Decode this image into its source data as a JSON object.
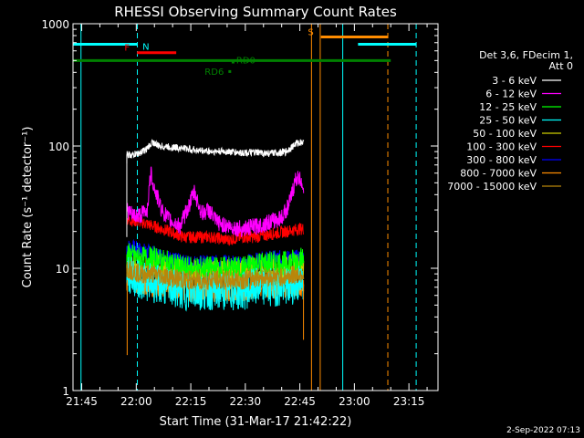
{
  "chart_data": {
    "type": "line",
    "title": "RHESSI Observing Summary Count Rates",
    "xlabel": "Start Time (31-Mar-17 21:42:22)",
    "ylabel": "Count Rate (s⁻¹ detector⁻¹)",
    "yscale": "log",
    "ylim": [
      1,
      1000
    ],
    "xlim_minutes": [
      -2.4,
      98.0
    ],
    "x_unit": "minutes after 21:45 UT",
    "x_ticks": [
      {
        "t": 0,
        "label": "21:45"
      },
      {
        "t": 15,
        "label": "22:00"
      },
      {
        "t": 30,
        "label": "22:15"
      },
      {
        "t": 45,
        "label": "22:30"
      },
      {
        "t": 60,
        "label": "22:45"
      },
      {
        "t": 75,
        "label": "23:00"
      },
      {
        "t": 90,
        "label": "23:15"
      }
    ],
    "y_ticks": [
      {
        "v": 1,
        "label": "1"
      },
      {
        "v": 10,
        "label": "10"
      },
      {
        "v": 100,
        "label": "100"
      },
      {
        "v": 1000,
        "label": "1000"
      }
    ],
    "legend": {
      "position": "right",
      "header": [
        "Det 3,6, FDecim 1,",
        "Att 0"
      ],
      "entries": [
        {
          "label": "3 - 6 keV",
          "color": "#ffffff"
        },
        {
          "label": "6 - 12 keV",
          "color": "#ff00ff"
        },
        {
          "label": "12 - 25 keV",
          "color": "#00ff00"
        },
        {
          "label": "25 - 50 keV",
          "color": "#00ffff"
        },
        {
          "label": "50 - 100 keV",
          "color": "#cccc00"
        },
        {
          "label": "100 - 300 keV",
          "color": "#ff0000"
        },
        {
          "label": "300 - 800 keV",
          "color": "#0000ff"
        },
        {
          "label": "800 - 7000 keV",
          "color": "#ff8c00"
        },
        {
          "label": "7000 - 15000 keV",
          "color": "#b8860b"
        }
      ]
    },
    "data_interval_minutes": [
      12.4,
      61.1
    ],
    "series": [
      {
        "name": "3 - 6 keV",
        "color": "#ffffff",
        "x": [
          12.4,
          14,
          16,
          18,
          19.5,
          21,
          24,
          28,
          32,
          36,
          40,
          44,
          48,
          52,
          56,
          59,
          60.5,
          61.1
        ],
        "y": [
          85,
          84,
          88,
          95,
          108,
          100,
          98,
          96,
          92,
          90,
          90,
          88,
          88,
          87,
          89,
          105,
          108,
          105
        ]
      },
      {
        "name": "6 - 12 keV",
        "color": "#ff00ff",
        "x": [
          12.4,
          14,
          16,
          18,
          19,
          20,
          22,
          24,
          27,
          29,
          31,
          33,
          35,
          37,
          40,
          44,
          48,
          52,
          55,
          57,
          59,
          60.5,
          61.1
        ],
        "y": [
          30,
          27,
          27,
          30,
          60,
          45,
          30,
          25,
          22,
          30,
          42,
          28,
          30,
          24,
          22,
          21,
          22,
          24,
          26,
          33,
          55,
          52,
          45
        ]
      },
      {
        "name": "12 - 25 keV",
        "color": "#00ff00",
        "x": [
          12.4,
          16,
          20,
          24,
          28,
          32,
          36,
          40,
          44,
          48,
          52,
          56,
          60,
          61.1
        ],
        "y": [
          13,
          12,
          12,
          11,
          10,
          10,
          10,
          10,
          10,
          11,
          11,
          11,
          12,
          12
        ]
      },
      {
        "name": "25 - 50 keV",
        "color": "#00ffff",
        "x": [
          12.4,
          16,
          20,
          24,
          28,
          32,
          36,
          40,
          44,
          48,
          52,
          56,
          60,
          61.1
        ],
        "y": [
          9,
          8,
          7.5,
          7,
          6.5,
          6.5,
          6.5,
          6.5,
          6.5,
          7,
          7,
          7,
          7.5,
          7.5
        ]
      },
      {
        "name": "50 - 100 keV",
        "color": "#cccc00",
        "x": [
          12.4,
          16,
          20,
          24,
          28,
          32,
          36,
          40,
          44,
          48,
          52,
          56,
          60,
          61.1
        ],
        "y": [
          11,
          10,
          10,
          9.5,
          9,
          9,
          9,
          9,
          9,
          9.5,
          9.5,
          9.5,
          10,
          10
        ]
      },
      {
        "name": "100 - 300 keV",
        "color": "#ff0000",
        "x": [
          12.4,
          16,
          20,
          24,
          28,
          32,
          36,
          40,
          44,
          48,
          52,
          56,
          60,
          61.1
        ],
        "y": [
          25,
          24,
          22,
          20,
          18,
          18,
          18,
          17,
          18,
          18,
          19,
          20,
          21,
          21
        ]
      },
      {
        "name": "300 - 800 keV",
        "color": "#0000ff",
        "x": [
          12.4,
          16,
          20,
          24,
          28,
          32,
          36,
          40,
          44,
          48,
          52,
          56,
          60,
          61.1
        ],
        "y": [
          15,
          14,
          13,
          12,
          11,
          11,
          11,
          11,
          11,
          11.5,
          12,
          12,
          12,
          12
        ]
      },
      {
        "name": "800 - 7000 keV",
        "color": "#ff8c00",
        "x": [
          12.4,
          16,
          20,
          24,
          28,
          32,
          36,
          40,
          44,
          48,
          52,
          56,
          60,
          61.1
        ],
        "y": [
          8,
          7.5,
          7,
          7,
          6.5,
          6.5,
          6.5,
          6.5,
          6.5,
          7,
          7,
          7,
          7,
          7
        ]
      },
      {
        "name": "7000 - 15000 keV",
        "color": "#b8860b",
        "x": [
          12.4,
          16,
          20,
          24,
          28,
          32,
          36,
          40,
          44,
          48,
          52,
          56,
          60,
          61.1
        ],
        "y": [
          10,
          9,
          9,
          8.5,
          8,
          8,
          8,
          8,
          8,
          8.5,
          8.5,
          8.5,
          9,
          9
        ]
      }
    ],
    "flag_bars": [
      {
        "label": "N",
        "color": "#00ffff",
        "y": 680,
        "ranges": [
          [
            -2.4,
            15.2
          ],
          [
            76.0,
            92.0
          ]
        ]
      },
      {
        "label": "F",
        "color": "#ff0000",
        "y": 580,
        "ranges": [
          [
            15.2,
            26.0
          ]
        ]
      },
      {
        "label": "S",
        "color": "#ff8c00",
        "y": 780,
        "ranges": [
          [
            65.8,
            84.2
          ]
        ]
      },
      {
        "label": "",
        "color": "#008000",
        "y": 500,
        "ranges": [
          [
            -2.4,
            85.0
          ]
        ]
      }
    ],
    "point_flags": [
      {
        "label": "RD6",
        "color": "#008000",
        "t": 40.6,
        "y": 410
      },
      {
        "label": "RD0",
        "color": "#008000",
        "t": 41.5,
        "y": 490
      }
    ],
    "vertical_lines": [
      {
        "t": -0.2,
        "color": "#00ffff",
        "style": "solid"
      },
      {
        "t": 15.3,
        "color": "#00ffff",
        "style": "dashed"
      },
      {
        "t": 63.2,
        "color": "#ff8c00",
        "style": "solid"
      },
      {
        "t": 65.6,
        "color": "#ff8c00",
        "style": "solid"
      },
      {
        "t": 71.8,
        "color": "#00ffff",
        "style": "solid"
      },
      {
        "t": 84.2,
        "color": "#ff8c00",
        "style": "dashed"
      },
      {
        "t": 92.0,
        "color": "#00ffff",
        "style": "dashed"
      }
    ]
  },
  "footer": {
    "timestamp": "2-Sep-2022 07:13"
  }
}
